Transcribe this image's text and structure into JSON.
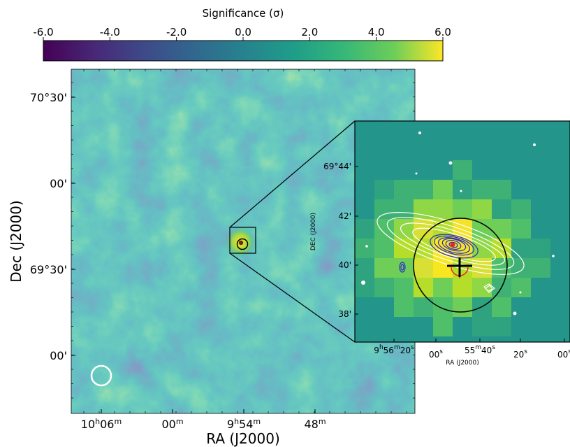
{
  "chart_data": [
    {
      "type": "heatmap",
      "colorbar": {
        "label": "Significance (σ)",
        "ticks": [
          "-6.0",
          "-4.0",
          "-2.0",
          "0.0",
          "2.0",
          "4.0",
          "6.0"
        ],
        "range": [
          -6.0,
          6.0
        ],
        "colormap": "viridis",
        "placement": "top"
      },
      "main_map": {
        "xlabel": "RA (J2000)",
        "ylabel": "Dec (J2000)",
        "x_ticks": [
          {
            "h": "10",
            "hu": "h",
            "m": "06",
            "mu": "m"
          },
          {
            "m": "00",
            "mu": "m"
          },
          {
            "h": "9",
            "hu": "h",
            "m": "54",
            "mu": "m"
          },
          {
            "m": "48",
            "mu": "m"
          }
        ],
        "y_ticks": [
          "70°30'",
          "00'",
          "69°30'",
          "00'"
        ],
        "hotspot_significance": 6.0,
        "psf_circle_color": "#ffffff"
      },
      "inset": {
        "xlabel": "RA (J2000)",
        "ylabel": "DEC (J2000)",
        "x_ticks": [
          {
            "h": "9",
            "hu": "h",
            "m": "56",
            "mu": "m",
            "s": "20",
            "su": "s"
          },
          {
            "s": "00",
            "su": "s"
          },
          {
            "m": "55",
            "mu": "m",
            "s": "40",
            "su": "s"
          },
          {
            "s": "20",
            "su": "s"
          },
          {
            "s": "00",
            "su": "s"
          }
        ],
        "y_ticks": [
          "69°44'",
          "42'",
          "40'",
          "38'"
        ],
        "contours_outer_color": "#ffffff",
        "contours_inner_color": "#2a2ac8",
        "marker_color": "#e8281e",
        "circle_color": "#000000"
      }
    }
  ]
}
